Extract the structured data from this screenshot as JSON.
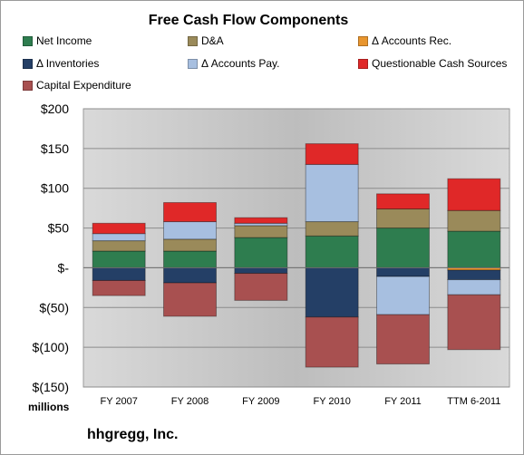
{
  "chart_data": {
    "type": "bar",
    "stacked": true,
    "title": "Free Cash Flow Components",
    "units_label": "millions",
    "company": "hhgregg, Inc.",
    "categories": [
      "FY 2007",
      "FY 2008",
      "FY 2009",
      "FY 2010",
      "FY 2011",
      "TTM 6-2011"
    ],
    "yticks": [
      "$200",
      "$150",
      "$100",
      "$50",
      "$-",
      "$(50)",
      "$(100)",
      "$(150)"
    ],
    "ylim": [
      -150,
      200
    ],
    "grid": true,
    "legend_position": "top",
    "series": [
      {
        "name": "Net Income",
        "color": "#2e7d4f",
        "values": [
          21,
          21,
          38,
          40,
          50,
          46
        ]
      },
      {
        "name": "D&A",
        "color": "#9a8a5a",
        "values": [
          13,
          15,
          15,
          18,
          24,
          26
        ]
      },
      {
        "name": "Δ Accounts Rec.",
        "color": "#e8952e",
        "values": [
          0,
          0,
          0,
          0,
          0,
          -3
        ]
      },
      {
        "name": "Δ Inventories",
        "color": "#243f66",
        "values": [
          -16,
          -19,
          -7,
          -62,
          -11,
          -12
        ]
      },
      {
        "name": "Δ Accounts Pay.",
        "color": "#a7bfe0",
        "values": [
          9,
          22,
          3,
          72,
          -48,
          -19
        ]
      },
      {
        "name": "Questionable Cash Sources",
        "color": "#e02828",
        "values": [
          13,
          24,
          7,
          26,
          19,
          40
        ]
      },
      {
        "name": "Capital Expenditure",
        "color": "#a85050",
        "values": [
          -19,
          -42,
          -34,
          -63,
          -62,
          -69
        ]
      }
    ]
  }
}
